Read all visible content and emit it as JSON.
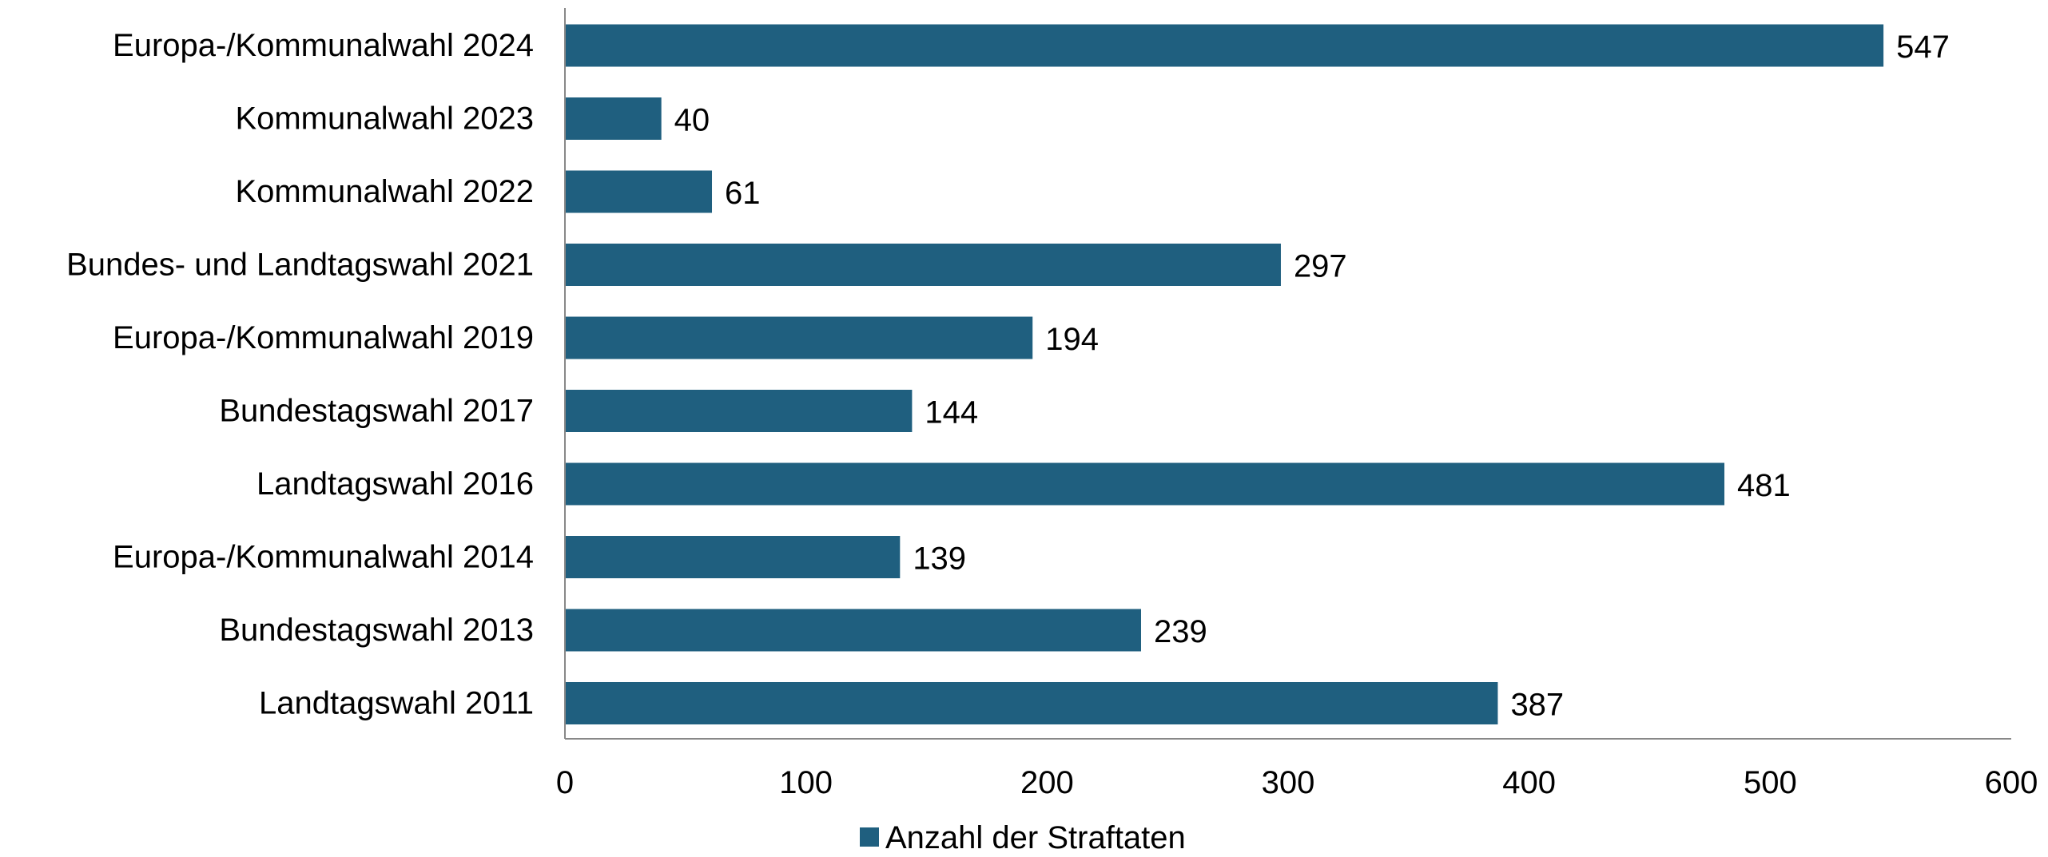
{
  "chart_data": {
    "type": "bar",
    "orientation": "horizontal",
    "categories": [
      "Europa-/Kommunalwahl 2024",
      "Kommunalwahl 2023",
      "Kommunalwahl 2022",
      "Bundes- und Landtagswahl 2021",
      "Europa-/Kommunalwahl 2019",
      "Bundestagswahl 2017",
      "Landtagswahl 2016",
      "Europa-/Kommunalwahl 2014",
      "Bundestagswahl 2013",
      "Landtagswahl 2011"
    ],
    "series": [
      {
        "name": "Anzahl der Straftaten",
        "values": [
          547,
          40,
          61,
          297,
          194,
          144,
          481,
          139,
          239,
          387
        ],
        "color": "#1f5f7f"
      }
    ],
    "title": "",
    "xlabel": "",
    "ylabel": "",
    "xlim": [
      0,
      600
    ],
    "x_ticks": [
      0,
      100,
      200,
      300,
      400,
      500,
      600
    ],
    "grid": false,
    "legend_position": "bottom",
    "data_labels": true
  }
}
